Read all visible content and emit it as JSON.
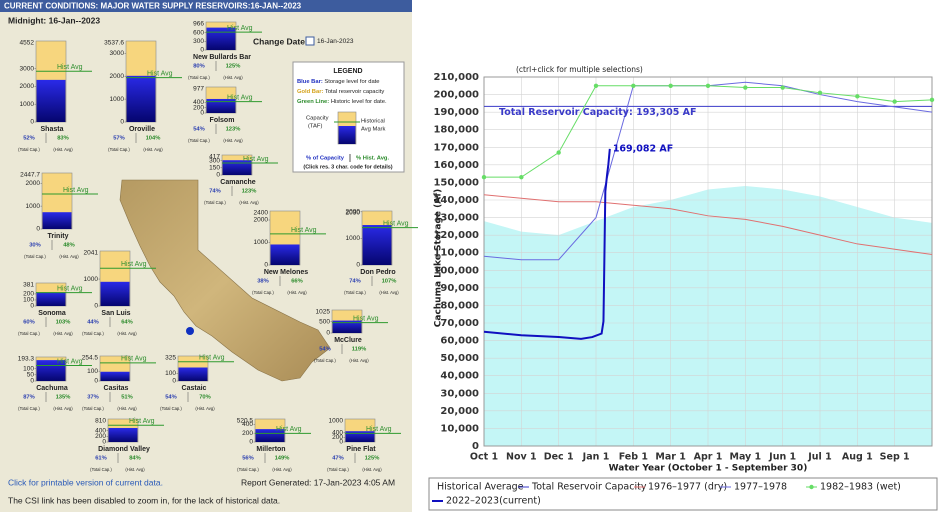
{
  "header": {
    "title": "CURRENT CONDITIONS: MAJOR WATER SUPPLY RESERVOIRS:16-JAN--2023",
    "midnight": "Midnight: 16-Jan--2023",
    "change_date_label": "Change Date:",
    "date": "16-Jan-2023"
  },
  "legend": {
    "title": "LEGEND",
    "blue_key": "Blue Bar:",
    "blue_text": "Storage level for date",
    "gold_key": "Gold Bar:",
    "gold_text": "Total reservoir capacity",
    "green_key": "Green Line:",
    "green_text": "Historic level for date.",
    "capacity": "Capacity",
    "taf": "(TAF)",
    "historical": "Historical",
    "avg_mark": "Avg Mark",
    "pct_capacity": "% of Capacity",
    "pct_hist": "% Hist. Avg.",
    "click_note": "(Click res. 3 char. code for details)"
  },
  "labels": {
    "hist_avg": "Hist Avg",
    "total_cap": "(Total Cap.)",
    "hist_avg_note": "(Hist. Avg)"
  },
  "reservoirs": [
    {
      "name": "Shasta",
      "capacity": 4552,
      "yticks": [
        0,
        1000,
        2000,
        3000
      ],
      "pct_capacity": 52,
      "pct_capacity_label": "52%",
      "pct_hist_avg": 83,
      "pct_hist_avg_label": "83%"
    },
    {
      "name": "Oroville",
      "capacity": 3537.6,
      "yticks": [
        0,
        1000,
        2000,
        3000
      ],
      "pct_capacity": 57,
      "pct_capacity_label": "57%",
      "pct_hist_avg": 104,
      "pct_hist_avg_label": "104%"
    },
    {
      "name": "New Bullards Bar",
      "capacity": 966,
      "yticks": [
        0,
        300,
        600
      ],
      "pct_capacity": 80,
      "pct_capacity_label": "80%",
      "pct_hist_avg": 125,
      "pct_hist_avg_label": "125%"
    },
    {
      "name": "Folsom",
      "capacity": 977,
      "yticks": [
        0,
        200,
        400
      ],
      "pct_capacity": 54,
      "pct_capacity_label": "54%",
      "pct_hist_avg": 123,
      "pct_hist_avg_label": "123%"
    },
    {
      "name": "Trinity",
      "capacity": 2447.7,
      "yticks": [
        0,
        1000,
        2000
      ],
      "pct_capacity": 30,
      "pct_capacity_label": "30%",
      "pct_hist_avg": 48,
      "pct_hist_avg_label": "48%"
    },
    {
      "name": "Camanche",
      "capacity": 417,
      "yticks": [
        0,
        150,
        300
      ],
      "pct_capacity": 74,
      "pct_capacity_label": "74%",
      "pct_hist_avg": 123,
      "pct_hist_avg_label": "123%"
    },
    {
      "name": "New Melones",
      "capacity": 2400,
      "yticks": [
        0,
        1000,
        2000
      ],
      "pct_capacity": 38,
      "pct_capacity_label": "38%",
      "pct_hist_avg": 66,
      "pct_hist_avg_label": "66%"
    },
    {
      "name": "Don Pedro",
      "capacity": 2030,
      "yticks": [
        0,
        1000,
        2000
      ],
      "pct_capacity": 74,
      "pct_capacity_label": "74%",
      "pct_hist_avg": 107,
      "pct_hist_avg_label": "107%"
    },
    {
      "name": "Sonoma",
      "capacity": 381,
      "yticks": [
        0,
        100,
        200
      ],
      "pct_capacity": 60,
      "pct_capacity_label": "60%",
      "pct_hist_avg": 103,
      "pct_hist_avg_label": "103%"
    },
    {
      "name": "San Luis",
      "capacity": 2041,
      "yticks": [
        0,
        1000
      ],
      "pct_capacity": 44,
      "pct_capacity_label": "44%",
      "pct_hist_avg": 64,
      "pct_hist_avg_label": "64%"
    },
    {
      "name": "McClure",
      "capacity": 1025,
      "yticks": [
        0,
        500
      ],
      "pct_capacity": 54,
      "pct_capacity_label": "54%",
      "pct_hist_avg": 119,
      "pct_hist_avg_label": "119%"
    },
    {
      "name": "Cachuma",
      "capacity": 193.3,
      "yticks": [
        0,
        50,
        100
      ],
      "pct_capacity": 87,
      "pct_capacity_label": "87%",
      "pct_hist_avg": 135,
      "pct_hist_avg_label": "135%"
    },
    {
      "name": "Casitas",
      "capacity": 254.5,
      "yticks": [
        0,
        100
      ],
      "pct_capacity": 37,
      "pct_capacity_label": "37%",
      "pct_hist_avg": 51,
      "pct_hist_avg_label": "51%"
    },
    {
      "name": "Castaic",
      "capacity": 325,
      "yticks": [
        0,
        100
      ],
      "pct_capacity": 54,
      "pct_capacity_label": "54%",
      "pct_hist_avg": 70,
      "pct_hist_avg_label": "70%"
    },
    {
      "name": "Diamond Valley",
      "capacity": 810,
      "yticks": [
        0,
        200,
        400
      ],
      "pct_capacity": 61,
      "pct_capacity_label": "61%",
      "pct_hist_avg": 84,
      "pct_hist_avg_label": "84%"
    },
    {
      "name": "Millerton",
      "capacity": 520.5,
      "yticks": [
        0,
        200,
        400
      ],
      "pct_capacity": 56,
      "pct_capacity_label": "56%",
      "pct_hist_avg": 149,
      "pct_hist_avg_label": "149%"
    },
    {
      "name": "Pine Flat",
      "capacity": 1000,
      "yticks": [
        0,
        200,
        400
      ],
      "pct_capacity": 47,
      "pct_capacity_label": "47%",
      "pct_hist_avg": 125,
      "pct_hist_avg_label": "125%"
    }
  ],
  "footer": {
    "printable_link": "Click for printable version of current data.",
    "report_generated": "Report Generated: 17-Jan-2023 4:05 AM",
    "note": "The CSI link has been disabled to zoom in, for the lack of historical data."
  },
  "chart_data": {
    "type": "line",
    "note": "(ctrl+click for multiple selections)",
    "xlabel": "Water Year (October 1 - September 30)",
    "ylabel": "Cachuma Lake Storage (Af)",
    "xlim": [
      0,
      12
    ],
    "xticks": [
      {
        "value": 0,
        "label": "Oct 1"
      },
      {
        "value": 1,
        "label": "Nov 1"
      },
      {
        "value": 2,
        "label": "Dec 1"
      },
      {
        "value": 3,
        "label": "Jan 1"
      },
      {
        "value": 4,
        "label": "Feb 1"
      },
      {
        "value": 5,
        "label": "Mar 1"
      },
      {
        "value": 6,
        "label": "Apr 1"
      },
      {
        "value": 7,
        "label": "May 1"
      },
      {
        "value": 8,
        "label": "Jun 1"
      },
      {
        "value": 9,
        "label": "Jul 1"
      },
      {
        "value": 10,
        "label": "Aug 1"
      },
      {
        "value": 11,
        "label": "Sep 1"
      }
    ],
    "ylim": [
      0,
      210000
    ],
    "yticks": [
      0,
      {
        "value": 10000,
        "label": "10,000"
      },
      {
        "value": 20000,
        "label": "20,000"
      },
      {
        "value": 30000,
        "label": "30,000"
      },
      {
        "value": 40000,
        "label": "40,000"
      },
      {
        "value": 50000,
        "label": "50,000"
      },
      {
        "value": 60000,
        "label": "60,000"
      },
      {
        "value": 70000,
        "label": "70,000"
      },
      {
        "value": 80000,
        "label": "80,000"
      },
      {
        "value": 90000,
        "label": "90,000"
      },
      {
        "value": 100000,
        "label": "100,000"
      },
      {
        "value": 110000,
        "label": "110,000"
      },
      {
        "value": 120000,
        "label": "120,000"
      },
      {
        "value": 130000,
        "label": "130,000"
      },
      {
        "value": 140000,
        "label": "140,000"
      },
      {
        "value": 150000,
        "label": "150,000"
      },
      {
        "value": 160000,
        "label": "160,000"
      },
      {
        "value": 170000,
        "label": "170,000"
      },
      {
        "value": 180000,
        "label": "180,000"
      },
      {
        "value": 190000,
        "label": "190,000"
      },
      {
        "value": 200000,
        "label": "200,000"
      },
      {
        "value": 210000,
        "label": "210,000"
      }
    ],
    "grid": true,
    "series": [
      {
        "name": "Historical Average",
        "color": "#c4f6f6",
        "area": true,
        "x": [
          0,
          1,
          2,
          3,
          4,
          5,
          6,
          7,
          8,
          9,
          10,
          11,
          12
        ],
        "values": [
          128000,
          122000,
          120000,
          128000,
          136000,
          140000,
          146000,
          148000,
          146000,
          142000,
          136000,
          130000,
          127000
        ]
      },
      {
        "name": "Total Reservoir Capacity",
        "color": "#3a3ac8",
        "x": [
          0,
          12
        ],
        "values": [
          193305,
          193305
        ]
      },
      {
        "name": "1976–1977 (dry)",
        "color": "#e07070",
        "x": [
          0,
          1,
          2,
          3,
          4,
          5,
          6,
          7,
          8,
          9,
          10,
          11,
          12
        ],
        "values": [
          143000,
          141000,
          139000,
          139000,
          137000,
          135000,
          131000,
          129000,
          125000,
          120000,
          115000,
          112000,
          109000
        ]
      },
      {
        "name": "1977–1978",
        "color": "#6a6ae0",
        "x": [
          0,
          1,
          2,
          3,
          4,
          5,
          6,
          7,
          8,
          9,
          10,
          11,
          12
        ],
        "values": [
          108000,
          106000,
          106000,
          130000,
          205000,
          205000,
          205000,
          207000,
          205000,
          200000,
          196000,
          193000,
          190000
        ]
      },
      {
        "name": "1982–1983 (wet)",
        "color": "#66dd66",
        "marker": true,
        "x": [
          0,
          1,
          2,
          3,
          4,
          5,
          6,
          7,
          8,
          9,
          10,
          11,
          12
        ],
        "values": [
          153000,
          153000,
          167000,
          205000,
          205000,
          205000,
          205000,
          204000,
          204000,
          201000,
          199000,
          196000,
          197000
        ]
      },
      {
        "name": "2022–2023(current)",
        "color": "#1010c0",
        "line_width": 2,
        "x": [
          0,
          1,
          2,
          2.6,
          2.9,
          3.15,
          3.2,
          3.22,
          3.25,
          3.3,
          3.33,
          3.37
        ],
        "values": [
          65000,
          63000,
          62000,
          61000,
          62000,
          64000,
          71000,
          100000,
          145000,
          155000,
          160000,
          169082
        ]
      }
    ],
    "annotations": [
      {
        "text": "Total Reservoir Capacity: 193,305 AF",
        "series": 1
      },
      {
        "text": "169,082 AF",
        "series": 5
      }
    ]
  }
}
